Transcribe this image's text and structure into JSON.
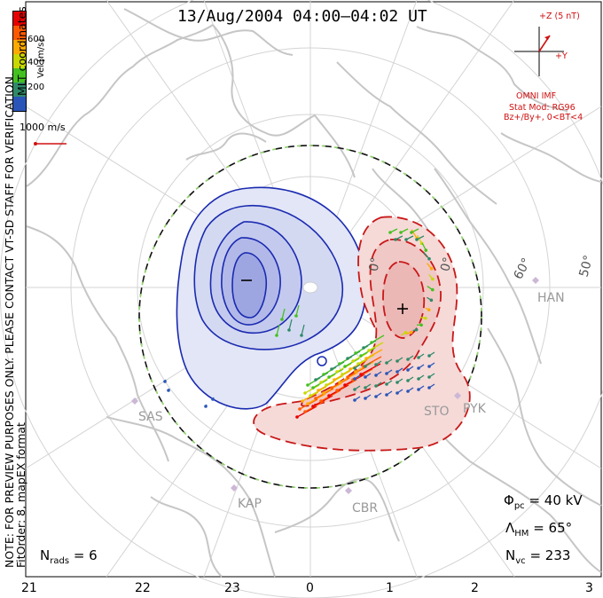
{
  "title": "13/Aug/2004 04:00–04:02 UT",
  "side_note": {
    "line1": "NOTE: FOR PREVIEW PURPOSES ONLY. PLEASE CONTACT VT-SD STAFF FOR VERIFICATION.",
    "line2": "FitOrder: 8, mapEX format"
  },
  "coords_label": "MLT coordinates",
  "colorbar": {
    "label": "Vel [m/s]",
    "ticks": [
      "600",
      "400",
      "200"
    ],
    "colors": [
      "#e80000",
      "#ff5a00",
      "#ffaa00",
      "#c8d800",
      "#44c020",
      "#2f8a6a",
      "#2a55b8"
    ]
  },
  "vector_scale": "1000 m/s",
  "imf": {
    "z_label": "+Z (5 nT)",
    "y_label": "+Y",
    "source": "OMNI IMF",
    "model": "Stat Mod: RG96",
    "condition": "Bz+/By+, 0<BT<4"
  },
  "lat_labels": [
    "60°",
    "50°",
    "0°",
    "0°"
  ],
  "stations": [
    "HAN",
    "SAS",
    "STO",
    "PYK",
    "KAP",
    "CBR"
  ],
  "stats": {
    "phi_pc": "Φ",
    "phi_sub": "pc",
    "phi_val": "= 40 kV",
    "lam": "Λ",
    "lam_sub": "HM",
    "lam_val": "= 65°",
    "nvc": "N",
    "nvc_sub": "vc",
    "nvc_val": "= 233",
    "nrads": "N",
    "nrads_sub": "rads",
    "nrads_val": "= 6"
  },
  "mlt_hours": [
    "21",
    "22",
    "23",
    "0",
    "1",
    "2",
    "3"
  ],
  "colors": {
    "neg_fill": "#dfe3f5",
    "neg_line": "#1a2ab0",
    "pos_fill": "#f4d8d6",
    "pos_line": "#c81818",
    "coast": "#c9c9c9",
    "grid": "#d0d0d0"
  }
}
